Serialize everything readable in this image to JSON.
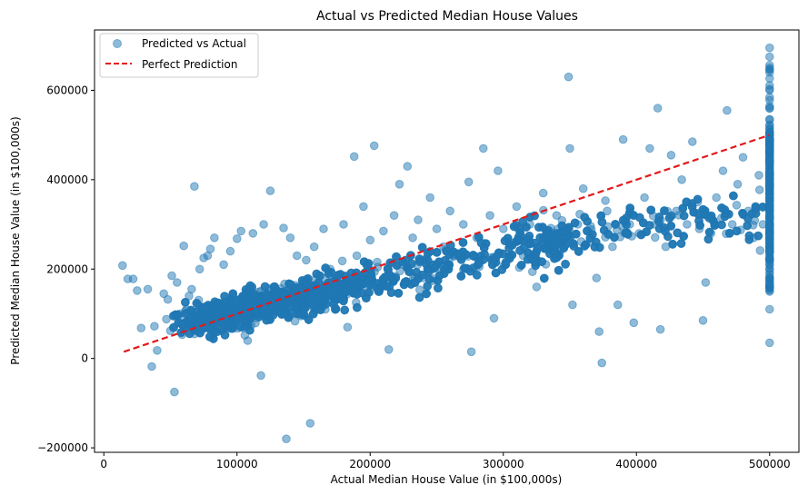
{
  "chart_data": {
    "type": "scatter",
    "title": "Actual vs Predicted Median House Values",
    "xlabel": "Actual Median House Value (in $100,000s)",
    "ylabel": "Predicted Median House Value (in $100,000s)",
    "xlim": [
      -7000,
      522000
    ],
    "ylim": [
      -210000,
      735000
    ],
    "x_ticks": [
      0,
      100000,
      200000,
      300000,
      400000,
      500000
    ],
    "x_tick_labels": [
      "0",
      "100000",
      "200000",
      "300000",
      "400000",
      "500000"
    ],
    "y_ticks": [
      -200000,
      0,
      200000,
      400000,
      600000
    ],
    "y_tick_labels": [
      "−200000",
      "0",
      "200000",
      "400000",
      "600000"
    ],
    "grid": false,
    "legend_position": "top-left",
    "series": [
      {
        "name": "Predicted vs Actual",
        "kind": "scatter",
        "color": "#1f77b4",
        "alpha": 0.5,
        "points": [
          [
            14000,
            208000
          ],
          [
            18000,
            178000
          ],
          [
            22000,
            178000
          ],
          [
            25000,
            152000
          ],
          [
            28000,
            68000
          ],
          [
            33000,
            155000
          ],
          [
            36000,
            -18000
          ],
          [
            38000,
            72000
          ],
          [
            40000,
            18000
          ],
          [
            45000,
            145000
          ],
          [
            47000,
            88000
          ],
          [
            48000,
            132000
          ],
          [
            50000,
            62000
          ],
          [
            51000,
            185000
          ],
          [
            53000,
            -75000
          ],
          [
            55000,
            170000
          ],
          [
            57000,
            100000
          ],
          [
            60000,
            252000
          ],
          [
            62000,
            110000
          ],
          [
            64000,
            140000
          ],
          [
            66000,
            155000
          ],
          [
            68000,
            385000
          ],
          [
            70000,
            78000
          ],
          [
            72000,
            200000
          ],
          [
            75000,
            225000
          ],
          [
            78000,
            230000
          ],
          [
            80000,
            245000
          ],
          [
            83000,
            270000
          ],
          [
            85000,
            120000
          ],
          [
            90000,
            210000
          ],
          [
            95000,
            240000
          ],
          [
            100000,
            268000
          ],
          [
            103000,
            285000
          ],
          [
            108000,
            40000
          ],
          [
            112000,
            280000
          ],
          [
            118000,
            -38000
          ],
          [
            120000,
            300000
          ],
          [
            125000,
            375000
          ],
          [
            128000,
            150000
          ],
          [
            135000,
            292000
          ],
          [
            137000,
            -180000
          ],
          [
            140000,
            270000
          ],
          [
            145000,
            230000
          ],
          [
            148000,
            95000
          ],
          [
            152000,
            220000
          ],
          [
            155000,
            -145000
          ],
          [
            158000,
            250000
          ],
          [
            160000,
            110000
          ],
          [
            165000,
            290000
          ],
          [
            170000,
            200000
          ],
          [
            175000,
            160000
          ],
          [
            180000,
            300000
          ],
          [
            183000,
            70000
          ],
          [
            188000,
            452000
          ],
          [
            190000,
            230000
          ],
          [
            195000,
            340000
          ],
          [
            200000,
            265000
          ],
          [
            203000,
            476000
          ],
          [
            206000,
            150000
          ],
          [
            210000,
            285000
          ],
          [
            214000,
            20000
          ],
          [
            218000,
            320000
          ],
          [
            222000,
            390000
          ],
          [
            225000,
            210000
          ],
          [
            228000,
            430000
          ],
          [
            232000,
            270000
          ],
          [
            236000,
            310000
          ],
          [
            240000,
            180000
          ],
          [
            245000,
            360000
          ],
          [
            250000,
            290000
          ],
          [
            255000,
            250000
          ],
          [
            260000,
            330000
          ],
          [
            265000,
            230000
          ],
          [
            270000,
            300000
          ],
          [
            274000,
            395000
          ],
          [
            276000,
            15000
          ],
          [
            280000,
            270000
          ],
          [
            285000,
            470000
          ],
          [
            290000,
            320000
          ],
          [
            293000,
            90000
          ],
          [
            296000,
            420000
          ],
          [
            300000,
            290000
          ],
          [
            305000,
            260000
          ],
          [
            310000,
            340000
          ],
          [
            315000,
            230000
          ],
          [
            320000,
            300000
          ],
          [
            325000,
            160000
          ],
          [
            330000,
            370000
          ],
          [
            335000,
            270000
          ],
          [
            340000,
            320000
          ],
          [
            345000,
            250000
          ],
          [
            349000,
            630000
          ],
          [
            350000,
            470000
          ],
          [
            352000,
            120000
          ],
          [
            356000,
            300000
          ],
          [
            360000,
            380000
          ],
          [
            365000,
            260000
          ],
          [
            370000,
            180000
          ],
          [
            372000,
            60000
          ],
          [
            374000,
            -10000
          ],
          [
            378000,
            330000
          ],
          [
            382000,
            250000
          ],
          [
            386000,
            120000
          ],
          [
            390000,
            490000
          ],
          [
            395000,
            300000
          ],
          [
            398000,
            80000
          ],
          [
            402000,
            280000
          ],
          [
            406000,
            360000
          ],
          [
            410000,
            470000
          ],
          [
            414000,
            300000
          ],
          [
            416000,
            560000
          ],
          [
            418000,
            65000
          ],
          [
            422000,
            250000
          ],
          [
            426000,
            455000
          ],
          [
            430000,
            330000
          ],
          [
            434000,
            400000
          ],
          [
            438000,
            300000
          ],
          [
            442000,
            485000
          ],
          [
            446000,
            350000
          ],
          [
            450000,
            85000
          ],
          [
            452000,
            170000
          ],
          [
            456000,
            280000
          ],
          [
            460000,
            360000
          ],
          [
            465000,
            420000
          ],
          [
            468000,
            555000
          ],
          [
            472000,
            300000
          ],
          [
            476000,
            390000
          ],
          [
            480000,
            450000
          ],
          [
            484000,
            330000
          ],
          [
            488000,
            270000
          ],
          [
            492000,
            410000
          ],
          [
            495000,
            300000
          ],
          [
            500000,
            35000
          ],
          [
            500001,
            110000
          ],
          [
            500001,
            150000
          ],
          [
            500001,
            200000
          ],
          [
            500001,
            240000
          ],
          [
            500001,
            280000
          ],
          [
            500001,
            320000
          ],
          [
            500001,
            360000
          ],
          [
            500001,
            400000
          ],
          [
            500001,
            440000
          ],
          [
            500001,
            480000
          ],
          [
            500001,
            520000
          ],
          [
            500001,
            560000
          ],
          [
            500001,
            600000
          ],
          [
            500001,
            640000
          ],
          [
            500001,
            675000
          ],
          [
            500001,
            695000
          ]
        ]
      },
      {
        "name": "Perfect Prediction",
        "kind": "line",
        "color": "#e31a1c",
        "style": "dashed",
        "x": [
          14999,
          500001
        ],
        "y": [
          14999,
          500001
        ]
      }
    ]
  }
}
